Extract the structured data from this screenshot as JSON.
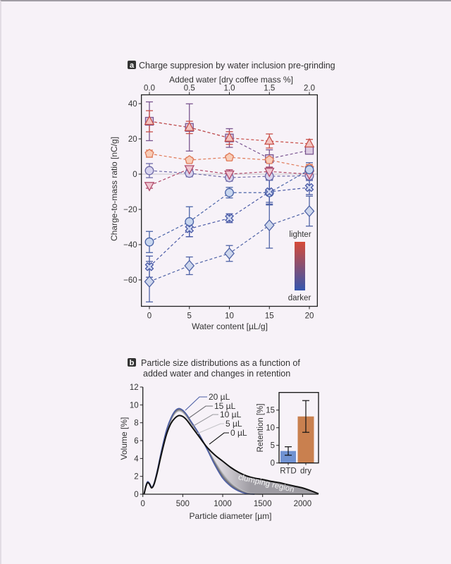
{
  "page": {
    "background": "#f7f2f8"
  },
  "chart_data": [
    {
      "type": "line",
      "panel_label": "a",
      "title": "Charge suppresion by water inclusion pre-grinding",
      "xlabel": "Water content [µL/g]",
      "ylabel": "Charge-to-mass ratio [nC/g]",
      "x": [
        0,
        5,
        10,
        15,
        20
      ],
      "xlim": [
        -1,
        21
      ],
      "ylim": [
        -75,
        45
      ],
      "xticks": [
        0,
        5,
        10,
        15,
        20
      ],
      "xtick_labels": [
        "0",
        "5",
        "10",
        "15",
        "20"
      ],
      "yticks": [
        -60,
        -40,
        -20,
        0,
        20,
        40
      ],
      "ytick_labels": [
        "−60",
        "−40",
        "−20",
        "0",
        "20",
        "40"
      ],
      "grid": false,
      "reference_line_y": 0,
      "secondary_xaxis": {
        "position": "top",
        "label": "Added water [dry coffee mass %]",
        "tick_values": [
          0.0,
          0.5,
          1.0,
          1.5,
          2.0
        ],
        "tick_labels": [
          "0.0",
          "0.5",
          "1.0",
          "1.5",
          "2.0"
        ],
        "corresponds_to_water_content": [
          0,
          5,
          10,
          15,
          20
        ]
      },
      "series": [
        {
          "marker": "square",
          "edge": "#7a5590",
          "fill": "#dccbe2",
          "values": [
            30,
            26.5,
            20.5,
            8.8,
            13.5
          ],
          "errors": [
            11,
            13.4,
            5.3,
            5,
            2
          ]
        },
        {
          "marker": "triangle-up",
          "edge": "#c8504a",
          "fill": "#f2c4c0",
          "values": [
            30,
            26.5,
            20.5,
            18.8,
            17.2
          ],
          "errors": [
            6,
            3.5,
            3.6,
            4,
            2.5
          ]
        },
        {
          "marker": "pentagon",
          "edge": "#e07a58",
          "fill": "#f8cdb8",
          "values": [
            11.6,
            8,
            9.5,
            8,
            3.5
          ],
          "errors": [
            2,
            1.5,
            1.5,
            1.5,
            2
          ]
        },
        {
          "marker": "circle",
          "edge": "#6e6aa8",
          "fill": "#d8d4ee",
          "values": [
            2,
            0.5,
            -2,
            -1.2,
            -1
          ],
          "errors": [
            4,
            2,
            2,
            2,
            2
          ]
        },
        {
          "marker": "triangle-down",
          "edge": "#b04a6a",
          "fill": "#efc6d2",
          "values": [
            -6.5,
            3,
            0,
            1.5,
            0
          ],
          "errors": [
            1.5,
            1.5,
            2.5,
            2.5,
            2
          ]
        },
        {
          "marker": "circle",
          "edge": "#4a64a8",
          "fill": "#c8d6ee",
          "values": [
            -38.5,
            -27,
            -10.5,
            -10.5,
            2.5
          ],
          "errors": [
            6,
            8.5,
            3,
            7,
            4
          ]
        },
        {
          "marker": "x",
          "edge": "#4a5aa6",
          "fill": "#d0d8f0",
          "values": [
            -52.5,
            -31,
            -25,
            -10,
            -7.6
          ],
          "errors": [
            6,
            4.5,
            2.5,
            7,
            4
          ]
        },
        {
          "marker": "diamond",
          "edge": "#4f63a6",
          "fill": "#cdd6ec",
          "values": [
            -61,
            -52,
            -45,
            -29,
            -21
          ],
          "errors": [
            11.5,
            5,
            4.5,
            13,
            8.5
          ]
        }
      ],
      "colorbar": {
        "placement": "lower-right",
        "top_label": "lighter",
        "bottom_label": "darker",
        "top_color": "#d64a38",
        "bottom_color": "#3556ae"
      }
    },
    {
      "type": "line",
      "panel_label": "b",
      "title_lines": [
        "Particle size distributions as a function of",
        "added water and changes in retention"
      ],
      "xlabel": "Particle diameter [µm]",
      "ylabel": "Volume [%]",
      "xlim": [
        0,
        2200
      ],
      "ylim": [
        0,
        12
      ],
      "xticks": [
        0,
        500,
        1000,
        1500,
        2000
      ],
      "xtick_labels": [
        "0",
        "500",
        "1000",
        "1500",
        "2000"
      ],
      "yticks": [
        0,
        2,
        4,
        6,
        8,
        10,
        12
      ],
      "ytick_labels": [
        "0",
        "2",
        "4",
        "6",
        "8",
        "10",
        "12"
      ],
      "grid": false,
      "x": [
        15,
        40,
        60,
        85,
        110,
        140,
        180,
        220,
        260,
        300,
        350,
        400,
        450,
        500,
        550,
        600,
        700,
        800,
        900,
        1000,
        1100,
        1200,
        1300,
        1400,
        1500,
        1600,
        1700,
        1800,
        1900,
        2000,
        2100,
        2200
      ],
      "series": [
        {
          "name": "20 µL",
          "color": "#4d5fa6",
          "values": [
            0,
            1.0,
            1.4,
            1.2,
            0.8,
            1.2,
            2.6,
            4.3,
            5.9,
            7.3,
            8.5,
            9.3,
            9.6,
            9.4,
            8.9,
            8.2,
            6.8,
            5.1,
            3.3,
            1.8,
            0.9,
            0.35,
            0.05,
            0
          ]
        },
        {
          "name": "15 µL",
          "color": "#6e6e74",
          "values": [
            0,
            1.0,
            1.4,
            1.2,
            0.8,
            1.2,
            2.6,
            4.3,
            5.9,
            7.2,
            8.4,
            9.2,
            9.5,
            9.35,
            8.85,
            8.15,
            6.8,
            5.15,
            3.45,
            2.0,
            1.05,
            0.45,
            0.1,
            0
          ]
        },
        {
          "name": "10 µL",
          "color": "#9a9a9e",
          "values": [
            0,
            0.95,
            1.35,
            1.15,
            0.75,
            1.15,
            2.5,
            4.2,
            5.8,
            7.1,
            8.3,
            9.1,
            9.4,
            9.25,
            8.75,
            8.05,
            6.75,
            5.2,
            3.6,
            2.2,
            1.2,
            0.55,
            0.15,
            0.02,
            0
          ]
        },
        {
          "name": "5 µL",
          "color": "#c4c4c8",
          "values": [
            0,
            0.95,
            1.35,
            1.15,
            0.75,
            1.15,
            2.5,
            4.1,
            5.7,
            7.0,
            8.2,
            9.0,
            9.3,
            9.15,
            8.65,
            7.95,
            6.7,
            5.2,
            3.7,
            2.35,
            1.35,
            0.65,
            0.2,
            0.03,
            0
          ]
        },
        {
          "name": "0 µL",
          "color": "#111111",
          "values": [
            0,
            0.9,
            1.3,
            1.1,
            0.7,
            1.1,
            2.4,
            4.0,
            5.5,
            6.8,
            7.9,
            8.5,
            8.8,
            8.7,
            8.3,
            7.7,
            6.5,
            5.3,
            4.4,
            3.7,
            3.0,
            2.45,
            2.05,
            1.8,
            1.65,
            1.45,
            1.3,
            1.1,
            0.9,
            0.7,
            0.4,
            0.05
          ]
        }
      ],
      "annotation": {
        "text": "clumping region",
        "between_series": [
          "0 µL",
          "20 µL"
        ],
        "x_range": [
          800,
          2200
        ],
        "fill_color": "#8f8d94"
      }
    },
    {
      "type": "bar",
      "placement": "inset upper-right of panel b",
      "categories": [
        "RTD",
        "dry"
      ],
      "values": [
        3.4,
        13.2
      ],
      "errors": [
        1.2,
        4.5
      ],
      "colors": [
        "#7092d2",
        "#c9804f"
      ],
      "xlabel": "",
      "ylabel": "Retention [%]",
      "ylim": [
        0,
        20
      ],
      "yticks": [
        0,
        5,
        10,
        15
      ],
      "ytick_labels": [
        "0",
        "5",
        "10",
        "15"
      ]
    }
  ]
}
